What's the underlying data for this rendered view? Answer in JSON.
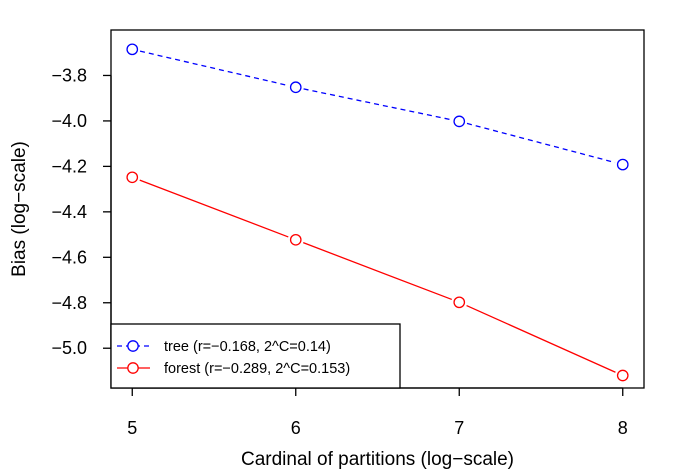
{
  "chart_data": {
    "type": "line",
    "title": "",
    "xlabel": "Cardinal of partitions (log−scale)",
    "ylabel": "Bias (log−scale)",
    "x": [
      5,
      6,
      7,
      8
    ],
    "xlim": [
      4.87,
      8.13
    ],
    "ylim": [
      -5.175,
      -3.6
    ],
    "xticks": [
      5,
      6,
      7,
      8
    ],
    "xtick_labels": [
      "5",
      "6",
      "7",
      "8"
    ],
    "yticks": [
      -5.0,
      -4.8,
      -4.6,
      -4.4,
      -4.2,
      -4.0,
      -3.8
    ],
    "ytick_labels": [
      "−5.0",
      "−4.8",
      "−4.6",
      "−4.4",
      "−4.2",
      "−4.0",
      "−3.8"
    ],
    "grid": false,
    "legend_position": "bottom-left",
    "series": [
      {
        "name": "tree (r=−0.168, 2^C=0.14)",
        "values": [
          -3.685,
          -3.852,
          -4.002,
          -4.192
        ],
        "color": "#0000ff",
        "dash": "dashed",
        "marker": "open-circle"
      },
      {
        "name": "forest (r=−0.289, 2^C=0.153)",
        "values": [
          -4.248,
          -4.523,
          -4.798,
          -5.12
        ],
        "color": "#ff0000",
        "dash": "solid",
        "marker": "open-circle"
      }
    ]
  }
}
